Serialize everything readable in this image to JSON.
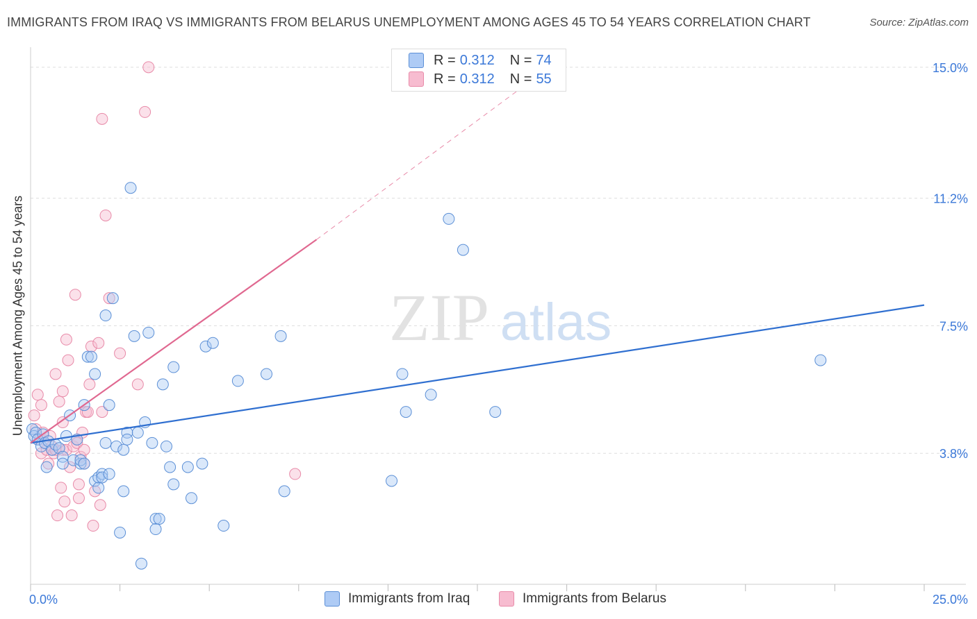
{
  "title": "IMMIGRANTS FROM IRAQ VS IMMIGRANTS FROM BELARUS UNEMPLOYMENT AMONG AGES 45 TO 54 YEARS CORRELATION CHART",
  "source": "Source: ZipAtlas.com",
  "watermark": {
    "zip": "ZIP",
    "atlas": "atlas"
  },
  "legend": {
    "rows": [
      {
        "r_label": "R = ",
        "r_value": "0.312",
        "n_label": "N = ",
        "n_value": "74"
      },
      {
        "r_label": "R = ",
        "r_value": "0.312",
        "n_label": "N = ",
        "n_value": "55"
      }
    ]
  },
  "colors": {
    "iraq_fill": "#aecbf5",
    "iraq_stroke": "#5b8fd6",
    "iraq_line": "#2f6fd0",
    "belarus_fill": "#f7bcd0",
    "belarus_stroke": "#e88aa8",
    "belarus_line": "#e06890",
    "axis_label": "#3b78d8",
    "grid": "#dddddd"
  },
  "chart_data": {
    "type": "scatter",
    "title": "IMMIGRANTS FROM IRAQ VS IMMIGRANTS FROM BELARUS UNEMPLOYMENT AMONG AGES 45 TO 54 YEARS CORRELATION CHART",
    "xlabel": "",
    "ylabel": "Unemployment Among Ages 45 to 54 years",
    "xlim": [
      0,
      25
    ],
    "ylim": [
      0,
      15.5
    ],
    "x_tick_labels": [
      "0.0%",
      "25.0%"
    ],
    "y_ticks": [
      3.8,
      7.5,
      11.2,
      15.0
    ],
    "y_tick_labels": [
      "3.8%",
      "7.5%",
      "11.2%",
      "15.0%"
    ],
    "series": [
      {
        "name": "Immigrants from Iraq",
        "points": [
          [
            0.05,
            4.5
          ],
          [
            0.1,
            4.3
          ],
          [
            0.15,
            4.4
          ],
          [
            0.2,
            4.2
          ],
          [
            0.3,
            4.0
          ],
          [
            0.35,
            4.35
          ],
          [
            0.4,
            4.1
          ],
          [
            0.5,
            4.15
          ],
          [
            0.6,
            3.9
          ],
          [
            0.7,
            4.05
          ],
          [
            0.8,
            3.95
          ],
          [
            0.9,
            3.7
          ],
          [
            0.9,
            3.5
          ],
          [
            1.0,
            4.3
          ],
          [
            1.1,
            4.9
          ],
          [
            1.2,
            3.6
          ],
          [
            1.3,
            4.2
          ],
          [
            1.4,
            3.5
          ],
          [
            1.4,
            3.6
          ],
          [
            1.5,
            3.5
          ],
          [
            1.5,
            5.2
          ],
          [
            1.6,
            6.6
          ],
          [
            1.7,
            6.6
          ],
          [
            1.8,
            6.1
          ],
          [
            1.8,
            3.0
          ],
          [
            1.9,
            2.8
          ],
          [
            1.9,
            3.1
          ],
          [
            2.0,
            3.2
          ],
          [
            2.0,
            3.1
          ],
          [
            2.1,
            7.8
          ],
          [
            2.1,
            4.1
          ],
          [
            2.2,
            5.2
          ],
          [
            2.2,
            3.2
          ],
          [
            2.3,
            8.3
          ],
          [
            2.4,
            4.0
          ],
          [
            2.5,
            1.5
          ],
          [
            2.6,
            3.9
          ],
          [
            2.6,
            2.7
          ],
          [
            2.7,
            4.4
          ],
          [
            2.7,
            4.2
          ],
          [
            2.8,
            11.5
          ],
          [
            2.9,
            7.2
          ],
          [
            3.0,
            4.4
          ],
          [
            3.1,
            0.6
          ],
          [
            3.2,
            4.7
          ],
          [
            3.3,
            7.3
          ],
          [
            3.4,
            4.1
          ],
          [
            3.5,
            1.9
          ],
          [
            3.5,
            1.6
          ],
          [
            3.6,
            1.9
          ],
          [
            3.7,
            5.8
          ],
          [
            3.8,
            4.0
          ],
          [
            3.9,
            3.4
          ],
          [
            4.0,
            6.3
          ],
          [
            4.0,
            2.9
          ],
          [
            4.4,
            3.4
          ],
          [
            4.5,
            2.5
          ],
          [
            4.8,
            3.5
          ],
          [
            4.9,
            6.9
          ],
          [
            5.1,
            7.0
          ],
          [
            5.4,
            1.7
          ],
          [
            5.8,
            5.9
          ],
          [
            6.6,
            6.1
          ],
          [
            7.0,
            7.2
          ],
          [
            7.1,
            2.7
          ],
          [
            10.1,
            3.0
          ],
          [
            10.4,
            6.1
          ],
          [
            10.5,
            5.0
          ],
          [
            11.2,
            5.5
          ],
          [
            11.7,
            10.6
          ],
          [
            12.1,
            9.7
          ],
          [
            13.0,
            5.0
          ],
          [
            22.1,
            6.5
          ],
          [
            0.45,
            3.4
          ]
        ],
        "trend": {
          "x1": 0,
          "y1": 4.1,
          "x2": 25,
          "y2": 8.1
        }
      },
      {
        "name": "Immigrants from Belarus",
        "points": [
          [
            0.1,
            4.9
          ],
          [
            0.15,
            4.5
          ],
          [
            0.2,
            5.5
          ],
          [
            0.25,
            4.2
          ],
          [
            0.3,
            5.2
          ],
          [
            0.3,
            3.8
          ],
          [
            0.4,
            4.1
          ],
          [
            0.45,
            3.9
          ],
          [
            0.5,
            3.5
          ],
          [
            0.55,
            4.3
          ],
          [
            0.6,
            4.0
          ],
          [
            0.6,
            3.9
          ],
          [
            0.65,
            3.8
          ],
          [
            0.7,
            6.1
          ],
          [
            0.7,
            3.9
          ],
          [
            0.75,
            2.0
          ],
          [
            0.8,
            5.3
          ],
          [
            0.85,
            2.8
          ],
          [
            0.9,
            4.7
          ],
          [
            0.9,
            3.9
          ],
          [
            0.9,
            5.6
          ],
          [
            0.95,
            2.4
          ],
          [
            1.0,
            7.1
          ],
          [
            1.0,
            3.9
          ],
          [
            1.05,
            6.5
          ],
          [
            1.1,
            3.4
          ],
          [
            1.15,
            2.0
          ],
          [
            1.2,
            4.0
          ],
          [
            1.25,
            8.4
          ],
          [
            1.3,
            4.2
          ],
          [
            1.3,
            4.1
          ],
          [
            1.35,
            2.9
          ],
          [
            1.35,
            2.5
          ],
          [
            1.4,
            3.7
          ],
          [
            1.45,
            4.4
          ],
          [
            1.5,
            3.5
          ],
          [
            1.5,
            3.9
          ],
          [
            1.55,
            5.0
          ],
          [
            1.6,
            5.0
          ],
          [
            1.65,
            5.8
          ],
          [
            1.7,
            6.9
          ],
          [
            1.75,
            1.7
          ],
          [
            1.8,
            2.7
          ],
          [
            1.9,
            7.0
          ],
          [
            1.95,
            2.3
          ],
          [
            2.0,
            5.0
          ],
          [
            2.0,
            13.5
          ],
          [
            2.1,
            10.7
          ],
          [
            2.2,
            8.3
          ],
          [
            2.5,
            6.7
          ],
          [
            3.0,
            5.8
          ],
          [
            3.2,
            13.7
          ],
          [
            3.3,
            15.0
          ],
          [
            7.4,
            3.2
          ],
          [
            0.35,
            4.4
          ]
        ],
        "trend": {
          "x1": 0,
          "y1": 4.1,
          "x2": 8.0,
          "y2": 10.0,
          "dash_to_x": 13.6,
          "dash_to_y": 14.3
        }
      }
    ]
  },
  "bottom_legend": [
    {
      "label": "Immigrants from Iraq"
    },
    {
      "label": "Immigrants from Belarus"
    }
  ]
}
